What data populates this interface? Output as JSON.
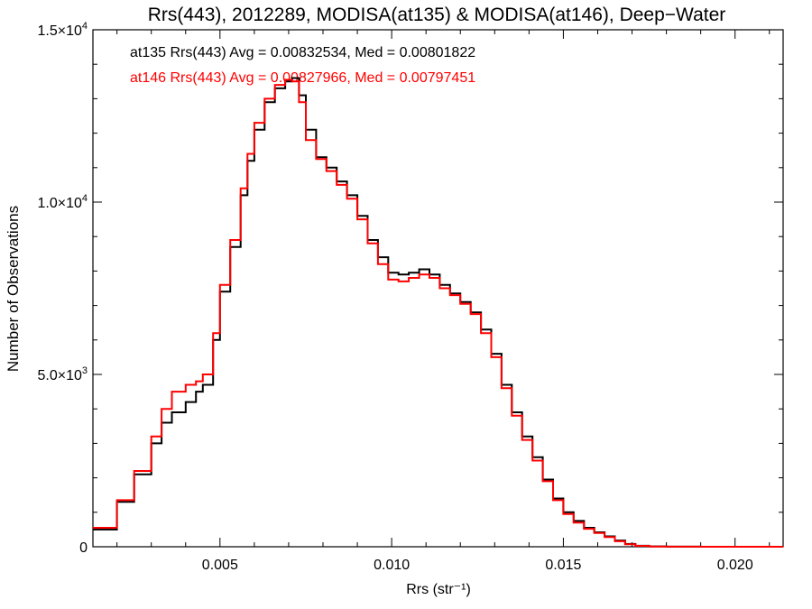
{
  "chart_data": {
    "type": "line",
    "step": true,
    "title": "Rrs(443), 2012289, MODISA(at135) & MODISA(at146), Deep−Water",
    "xlabel": "Rrs (str⁻¹)",
    "ylabel": "Number of Observations",
    "xlim": [
      0.0013,
      0.0214
    ],
    "ylim": [
      0,
      15000
    ],
    "x_ticks": [
      {
        "value": 0.005,
        "label": "0.005"
      },
      {
        "value": 0.01,
        "label": "0.010"
      },
      {
        "value": 0.015,
        "label": "0.015"
      },
      {
        "value": 0.02,
        "label": "0.020"
      }
    ],
    "y_ticks": [
      {
        "value": 0,
        "mantissa": "0",
        "exponent": ""
      },
      {
        "value": 5000,
        "mantissa": "5.0×10",
        "exponent": "3"
      },
      {
        "value": 10000,
        "mantissa": "1.0×10",
        "exponent": "4"
      },
      {
        "value": 15000,
        "mantissa": "1.5×10",
        "exponent": "4"
      }
    ],
    "grid": false,
    "annotations": [
      {
        "text": "at135 Rrs(443) Avg = 0.00832534, Med = 0.00801822",
        "color": "#000000"
      },
      {
        "text": "at146 Rrs(443) Avg = 0.00827966, Med = 0.00797451",
        "color": "#ff0000"
      }
    ],
    "series": [
      {
        "color": "#000000",
        "x": [
          0.0013,
          0.002,
          0.0025,
          0.003,
          0.0033,
          0.0036,
          0.004,
          0.0043,
          0.0045,
          0.0048,
          0.005,
          0.0053,
          0.0056,
          0.0058,
          0.006,
          0.0063,
          0.0066,
          0.0069,
          0.0071,
          0.0073,
          0.0075,
          0.0078,
          0.0081,
          0.0084,
          0.0087,
          0.009,
          0.0093,
          0.0096,
          0.0099,
          0.0102,
          0.0105,
          0.0108,
          0.0111,
          0.0114,
          0.0117,
          0.012,
          0.0123,
          0.0126,
          0.0129,
          0.0132,
          0.0135,
          0.0138,
          0.0141,
          0.0144,
          0.0147,
          0.015,
          0.0153,
          0.0156,
          0.0159,
          0.0162,
          0.0165,
          0.0168,
          0.0171,
          0.0175,
          0.018,
          0.019,
          0.02,
          0.0214
        ],
        "y": [
          500,
          1300,
          2100,
          3000,
          3600,
          3900,
          4200,
          4500,
          4700,
          6000,
          7400,
          8700,
          10200,
          11200,
          12100,
          12900,
          13300,
          13500,
          13600,
          13100,
          12100,
          11300,
          11000,
          10600,
          10200,
          9600,
          8900,
          8400,
          7950,
          7900,
          7950,
          8050,
          7900,
          7600,
          7350,
          7100,
          6800,
          6300,
          5600,
          4700,
          3900,
          3200,
          2600,
          1950,
          1400,
          1000,
          750,
          550,
          420,
          300,
          180,
          80,
          30,
          10,
          2,
          0,
          0,
          0
        ]
      },
      {
        "color": "#ff0000",
        "x": [
          0.0013,
          0.002,
          0.0025,
          0.003,
          0.0033,
          0.0036,
          0.004,
          0.0043,
          0.0045,
          0.0048,
          0.005,
          0.0053,
          0.0056,
          0.0058,
          0.006,
          0.0063,
          0.0066,
          0.0069,
          0.0071,
          0.0073,
          0.0075,
          0.0078,
          0.0081,
          0.0084,
          0.0087,
          0.009,
          0.0093,
          0.0096,
          0.0099,
          0.0102,
          0.0105,
          0.0108,
          0.0111,
          0.0114,
          0.0117,
          0.012,
          0.0123,
          0.0126,
          0.0129,
          0.0132,
          0.0135,
          0.0138,
          0.0141,
          0.0144,
          0.0147,
          0.015,
          0.0153,
          0.0156,
          0.0159,
          0.0162,
          0.0165,
          0.0168,
          0.0171,
          0.0175,
          0.018,
          0.019,
          0.02,
          0.0214
        ],
        "y": [
          550,
          1350,
          2200,
          3200,
          4000,
          4500,
          4700,
          4800,
          5000,
          6200,
          7600,
          8900,
          10400,
          11400,
          12300,
          13000,
          13400,
          13550,
          13500,
          12900,
          11800,
          11250,
          10900,
          10500,
          10100,
          9500,
          8800,
          8200,
          7750,
          7700,
          7800,
          7900,
          7800,
          7500,
          7300,
          7050,
          6750,
          6200,
          5500,
          4600,
          3800,
          3100,
          2500,
          1900,
          1350,
          950,
          700,
          520,
          400,
          280,
          160,
          70,
          25,
          8,
          2,
          0,
          0,
          0
        ]
      }
    ]
  }
}
